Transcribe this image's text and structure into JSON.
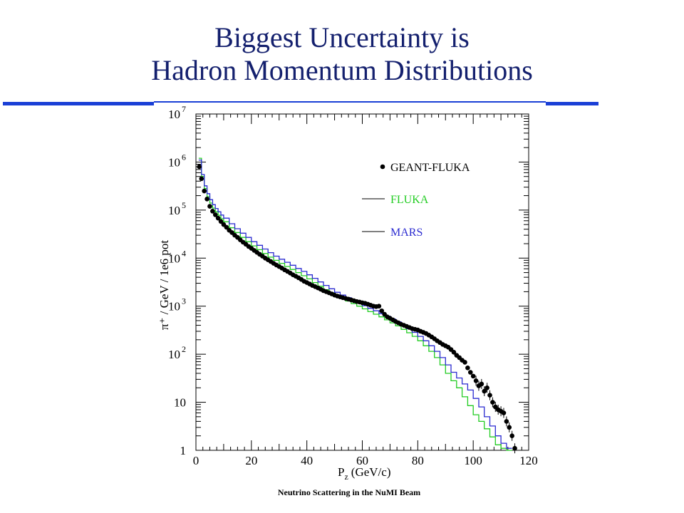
{
  "slide": {
    "title_line1": "Biggest Uncertainty is",
    "title_line2": "Hadron Momentum Distributions",
    "footer": "Neutrino Scattering in the NuMI Beam",
    "title_color": "#14206e",
    "rule_color": "#1a3fd6"
  },
  "chart_data": {
    "type": "scatter",
    "xlabel": "P_z (GeV/c)",
    "ylabel": "π⁺ / GeV / 1e6 pot",
    "xlim": [
      0,
      120
    ],
    "ylim": [
      1,
      10000000
    ],
    "yscale": "log",
    "x_ticks": [
      0,
      20,
      40,
      60,
      80,
      100,
      120
    ],
    "y_ticks": [
      {
        "value": 1,
        "base": "1",
        "exp": ""
      },
      {
        "value": 10,
        "base": "10",
        "exp": ""
      },
      {
        "value": 100,
        "base": "10",
        "exp": "2"
      },
      {
        "value": 1000,
        "base": "10",
        "exp": "3"
      },
      {
        "value": 10000,
        "base": "10",
        "exp": "4"
      },
      {
        "value": 100000,
        "base": "10",
        "exp": "5"
      },
      {
        "value": 1000000,
        "base": "10",
        "exp": "6"
      },
      {
        "value": 10000000,
        "base": "10",
        "exp": "7"
      }
    ],
    "legend_position": "top-right",
    "series": [
      {
        "name": "GEANT-FLUKA",
        "style": "markers",
        "color": "#000000",
        "x": [
          1.2,
          2,
          3,
          4,
          5,
          6,
          7,
          8,
          9,
          10,
          11,
          12,
          13,
          14,
          15,
          16,
          17,
          18,
          19,
          20,
          21,
          22,
          23,
          24,
          25,
          26,
          27,
          28,
          29,
          30,
          31,
          32,
          33,
          34,
          35,
          36,
          37,
          38,
          39,
          40,
          41,
          42,
          43,
          44,
          45,
          46,
          47,
          48,
          49,
          50,
          51,
          52,
          53,
          54,
          55,
          56,
          57,
          58,
          59,
          60,
          61,
          62,
          63,
          64,
          65,
          66,
          67,
          68,
          69,
          70,
          71,
          72,
          73,
          74,
          75,
          76,
          77,
          78,
          79,
          80,
          81,
          82,
          83,
          84,
          85,
          86,
          87,
          88,
          89,
          90,
          91,
          92,
          93,
          94,
          95,
          96,
          97,
          98,
          99,
          100,
          101,
          102,
          103,
          104,
          105,
          106,
          107,
          108,
          109,
          110,
          111,
          112,
          113,
          114,
          115
        ],
        "y": [
          800000,
          450000,
          250000,
          170000,
          120000,
          95000,
          80000,
          68000,
          58000,
          50000,
          44000,
          38000,
          34000,
          30000,
          27000,
          24000,
          21500,
          19500,
          17500,
          16000,
          14500,
          13200,
          12000,
          11000,
          10000,
          9200,
          8500,
          7800,
          7200,
          6700,
          6200,
          5700,
          5300,
          4900,
          4500,
          4200,
          3900,
          3600,
          3300,
          3100,
          2900,
          2700,
          2550,
          2400,
          2250,
          2100,
          2000,
          1900,
          1800,
          1700,
          1620,
          1560,
          1500,
          1450,
          1400,
          1350,
          1300,
          1250,
          1220,
          1180,
          1150,
          1100,
          1050,
          1000,
          980,
          1000,
          800,
          680,
          600,
          560,
          520,
          480,
          450,
          420,
          400,
          380,
          360,
          340,
          330,
          320,
          300,
          285,
          270,
          250,
          230,
          210,
          190,
          175,
          160,
          150,
          140,
          125,
          110,
          95,
          85,
          75,
          68,
          52,
          42,
          35,
          28,
          22,
          24,
          17,
          20,
          14,
          10,
          8,
          7,
          6.5,
          6,
          4,
          3,
          2,
          1.1
        ]
      },
      {
        "name": "FLUKA",
        "style": "step",
        "color": "#22cc22",
        "x": [
          1,
          2,
          3,
          4,
          5,
          6,
          7,
          8,
          9,
          10,
          12,
          14,
          16,
          18,
          20,
          22,
          24,
          26,
          28,
          30,
          32,
          34,
          36,
          38,
          40,
          42,
          44,
          46,
          48,
          50,
          52,
          54,
          56,
          58,
          60,
          62,
          64,
          66,
          68,
          70,
          72,
          74,
          76,
          78,
          80,
          82,
          84,
          86,
          88,
          90,
          92,
          94,
          96,
          98,
          100,
          102,
          104,
          106,
          108,
          110,
          112
        ],
        "y": [
          1200000,
          500000,
          280000,
          190000,
          140000,
          110000,
          92000,
          78000,
          66000,
          57000,
          43000,
          34000,
          27000,
          22000,
          18000,
          15000,
          12500,
          10500,
          9000,
          7800,
          6700,
          5800,
          5000,
          4300,
          3700,
          3100,
          2600,
          2200,
          1900,
          1650,
          1450,
          1280,
          1130,
          1000,
          880,
          770,
          680,
          600,
          520,
          450,
          390,
          330,
          280,
          235,
          190,
          150,
          115,
          85,
          60,
          40,
          28,
          20,
          13,
          8.5,
          5.5,
          4,
          2.8,
          1.9,
          1.3,
          1.1,
          1.0
        ]
      },
      {
        "name": "MARS",
        "style": "step",
        "color": "#2b2bd0",
        "x": [
          1,
          2,
          3,
          4,
          5,
          6,
          7,
          8,
          9,
          10,
          12,
          14,
          16,
          18,
          20,
          22,
          24,
          26,
          28,
          30,
          32,
          34,
          36,
          38,
          40,
          42,
          44,
          46,
          48,
          50,
          52,
          54,
          56,
          58,
          60,
          62,
          64,
          66,
          68,
          70,
          72,
          74,
          76,
          78,
          80,
          82,
          84,
          86,
          88,
          90,
          92,
          94,
          96,
          98,
          100,
          102,
          104,
          106,
          108,
          110,
          112
        ],
        "y": [
          1100000,
          550000,
          320000,
          220000,
          165000,
          130000,
          108000,
          92000,
          79000,
          68000,
          52000,
          41000,
          33000,
          27000,
          22000,
          18500,
          15500,
          13000,
          11000,
          9500,
          8200,
          7100,
          6100,
          5300,
          4500,
          3800,
          3200,
          2700,
          2300,
          1950,
          1700,
          1500,
          1320,
          1160,
          1020,
          900,
          800,
          700,
          620,
          540,
          470,
          400,
          340,
          285,
          235,
          190,
          150,
          115,
          85,
          60,
          42,
          32,
          24,
          18,
          12,
          8,
          5,
          3.2,
          2,
          1.4,
          1.1
        ]
      }
    ]
  }
}
